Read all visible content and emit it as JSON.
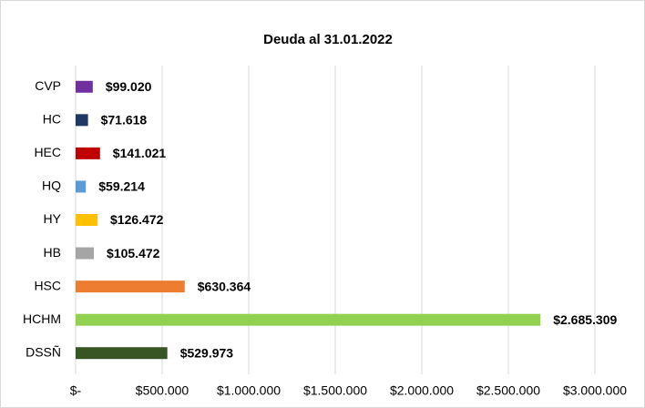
{
  "chart_data": {
    "type": "barh",
    "title": "Deuda al 31.01.2022",
    "categories": [
      "CVP",
      "HC",
      "HEC",
      "HQ",
      "HY",
      "HB",
      "HSC",
      "HCHM",
      "DSSÑ"
    ],
    "values": [
      99020,
      71618,
      141021,
      59214,
      126472,
      105472,
      630364,
      2685309,
      529973
    ],
    "value_labels": [
      "$99.020",
      "$71.618",
      "$141.021",
      "$59.214",
      "$126.472",
      "$105.472",
      "$630.364",
      "$2.685.309",
      "$529.973"
    ],
    "colors": [
      "#7030a0",
      "#1f3864",
      "#c00000",
      "#5b9bd5",
      "#ffc000",
      "#a5a5a5",
      "#ed7d31",
      "#92d050",
      "#375623"
    ],
    "xlim": [
      0,
      3000000
    ],
    "xticks": [
      {
        "value": 0,
        "label": "$-"
      },
      {
        "value": 500000,
        "label": "$500.000"
      },
      {
        "value": 1000000,
        "label": "$1.000.000"
      },
      {
        "value": 1500000,
        "label": "$1.500.000"
      },
      {
        "value": 2000000,
        "label": "$2.000.000"
      },
      {
        "value": 2500000,
        "label": "$2.500.000"
      },
      {
        "value": 3000000,
        "label": "$3.000.000"
      }
    ],
    "grid": true
  }
}
